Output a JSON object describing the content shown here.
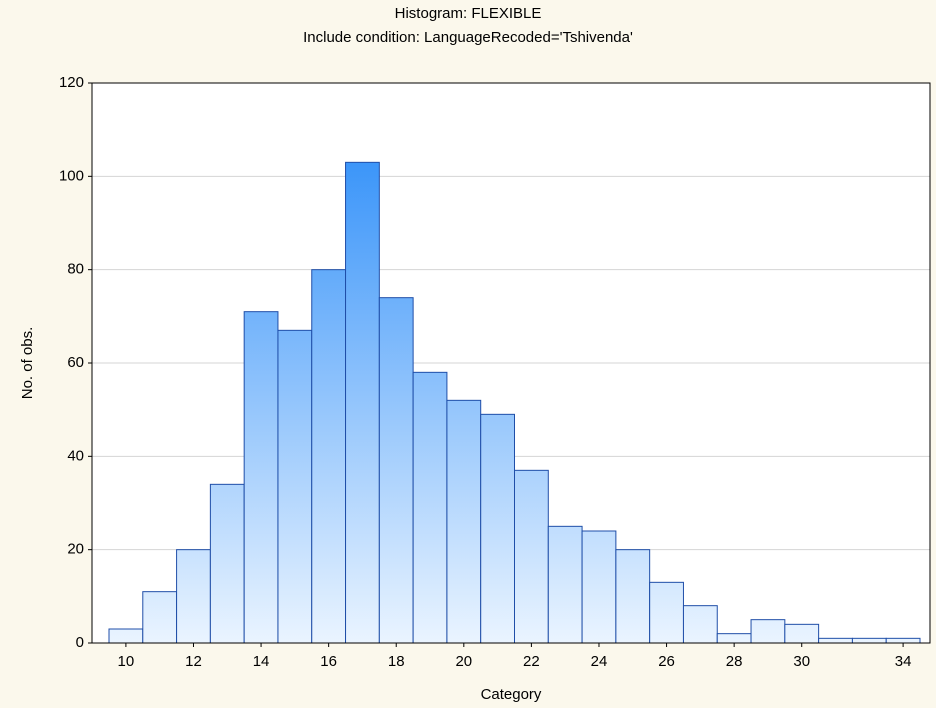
{
  "chart_data": {
    "type": "bar",
    "title": "Histogram: FLEXIBLE",
    "subtitle": "Include condition: LanguageRecoded='Tshivenda'",
    "x_label": "Category",
    "y_label": "No. of obs.",
    "categories": [
      "10",
      null,
      "12",
      null,
      "14",
      null,
      "16",
      null,
      "18",
      null,
      "20",
      null,
      "22",
      null,
      "24",
      null,
      "26",
      null,
      "28",
      null,
      "30",
      null,
      null,
      "34"
    ],
    "values": [
      3,
      11,
      20,
      34,
      71,
      67,
      80,
      103,
      74,
      58,
      52,
      49,
      37,
      25,
      24,
      20,
      13,
      8,
      2,
      5,
      4,
      1,
      1,
      1
    ],
    "color": "#2b8ff9",
    "ylim": [
      0,
      120
    ],
    "yticks": [
      0,
      20,
      40,
      60,
      80,
      100,
      120
    ],
    "grid": true
  }
}
